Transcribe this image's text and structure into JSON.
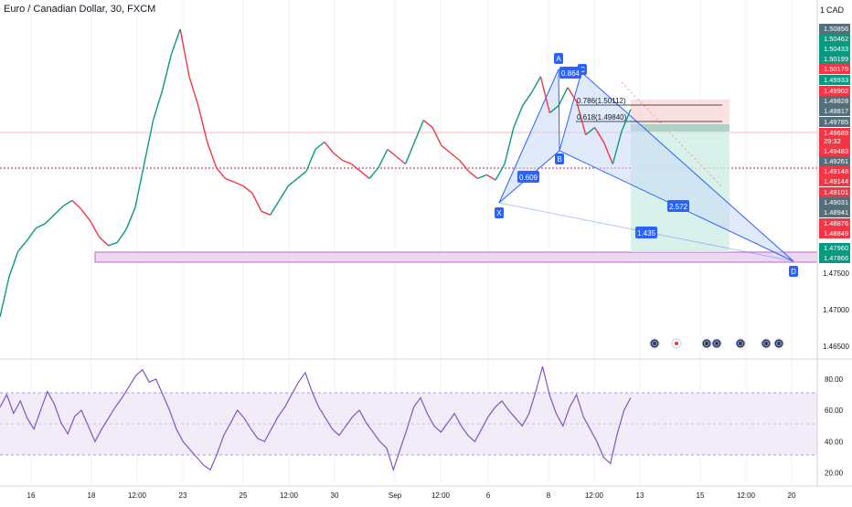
{
  "title": "Euro / Canadian Dollar, 30, FXCM",
  "currency": "CAD",
  "colors": {
    "up": "#089981",
    "down": "#f23645",
    "blue": "#2962ff",
    "pattern_fill": "#c9d8f5",
    "zone": "#e1bee7",
    "rsi": "#7e57c2",
    "rsi_band": "#ede7f6",
    "stop": "#f8d3d3",
    "target": "#d0ede6",
    "axis_text": "#131722"
  },
  "chart_data": [
    {
      "type": "line",
      "name": "price",
      "x_ticks": [
        "16",
        "18",
        "12:00",
        "23",
        "25",
        "12:00",
        "30",
        "Sep",
        "12:00",
        "6",
        "8",
        "12:00",
        "13",
        "15",
        "12:00",
        "20"
      ],
      "y_ticks": [
        1.475,
        1.47,
        1.465
      ],
      "y_tick_labels": [
        "1.47500",
        "1.47000",
        "1.46500"
      ],
      "y_range": [
        1.4636,
        1.512
      ],
      "close_approx": [
        1.469,
        1.4745,
        1.478,
        1.4795,
        1.4812,
        1.4818,
        1.483,
        1.4842,
        1.485,
        1.4838,
        1.4822,
        1.48,
        1.4788,
        1.4792,
        1.481,
        1.484,
        1.49,
        1.496,
        1.5,
        1.505,
        1.5085,
        1.502,
        1.498,
        1.493,
        1.4895,
        1.488,
        1.4875,
        1.487,
        1.486,
        1.4835,
        1.483,
        1.485,
        1.487,
        1.488,
        1.489,
        1.492,
        1.493,
        1.4915,
        1.4905,
        1.49,
        1.489,
        1.488,
        1.4895,
        1.492,
        1.491,
        1.49,
        1.493,
        1.496,
        1.495,
        1.4925,
        1.4915,
        1.4905,
        1.489,
        1.488,
        1.4885,
        1.4878,
        1.49,
        1.495,
        1.498,
        1.4998,
        1.502,
        1.497,
        1.498,
        1.5005,
        1.4985,
        1.494,
        1.495,
        1.493,
        1.49,
        1.4945,
        1.4975
      ],
      "price_labels": [
        "1.50856",
        "1.50462",
        "1.50433",
        "1.50199",
        "1.50175",
        "1.49933",
        "1.49902",
        "1.49828",
        "1.49817",
        "1.49785",
        "1.49689",
        "29:32",
        "1.49483",
        "1.49261",
        "1.49148",
        "1.49144",
        "1.49101",
        "1.49031",
        "1.48941",
        "1.48876",
        "1.48849",
        "1.47960",
        "1.47866"
      ]
    },
    {
      "type": "line",
      "name": "RSI",
      "y_ticks": [
        80,
        60,
        40,
        20
      ],
      "y_tick_labels": [
        "80.00",
        "60.00",
        "40.00",
        "20.00"
      ],
      "y_range": [
        14,
        91
      ],
      "band": [
        30,
        70
      ],
      "mid": 50,
      "values_approx": [
        62,
        70,
        58,
        66,
        55,
        48,
        60,
        72,
        64,
        52,
        45,
        56,
        60,
        50,
        40,
        48,
        55,
        62,
        68,
        75,
        82,
        86,
        78,
        80,
        70,
        60,
        48,
        40,
        35,
        30,
        25,
        22,
        32,
        44,
        52,
        60,
        55,
        48,
        42,
        40,
        48,
        56,
        62,
        70,
        78,
        84,
        72,
        62,
        55,
        48,
        44,
        50,
        56,
        60,
        52,
        46,
        40,
        36,
        22,
        35,
        48,
        62,
        68,
        58,
        50,
        46,
        52,
        58,
        50,
        44,
        40,
        48,
        56,
        62,
        66,
        60,
        55,
        50,
        58,
        72,
        88,
        70,
        58,
        50,
        62,
        70,
        56,
        48,
        40,
        30,
        26,
        45,
        60,
        68
      ]
    }
  ],
  "harmonic": {
    "points": [
      "X",
      "A",
      "B",
      "C",
      "D"
    ],
    "ratios": [
      "0.609",
      "0.864",
      "2.572",
      "1.435"
    ],
    "fib_786": "0.786(1.50112)",
    "fib_618": "0.618(1.49840)"
  },
  "events": [
    "flag-eu",
    "flag-ca",
    "flag-eu",
    "flag-eu",
    "flag-eu",
    "flag-eu",
    "flag-eu"
  ]
}
